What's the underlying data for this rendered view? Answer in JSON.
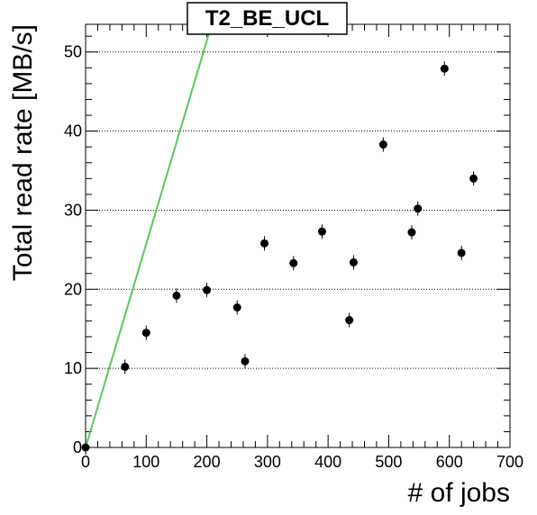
{
  "chart_data": {
    "type": "scatter",
    "title": "T2_BE_UCL",
    "xlabel": "# of jobs",
    "ylabel": "Total read rate [MB/s]",
    "xlim": [
      0,
      700
    ],
    "ylim": [
      0,
      53.5
    ],
    "x_ticks": [
      "0",
      "100",
      "200",
      "300",
      "400",
      "500",
      "600",
      "700"
    ],
    "y_ticks": [
      "0",
      "10",
      "20",
      "30",
      "40",
      "50"
    ],
    "grid": "horizontal dotted at major y ticks",
    "points": [
      {
        "x": 0,
        "y": 0
      },
      {
        "x": 65,
        "y": 10.2
      },
      {
        "x": 100,
        "y": 14.5
      },
      {
        "x": 150,
        "y": 19.2
      },
      {
        "x": 200,
        "y": 19.9
      },
      {
        "x": 250,
        "y": 17.7
      },
      {
        "x": 263,
        "y": 10.9
      },
      {
        "x": 295,
        "y": 25.8
      },
      {
        "x": 343,
        "y": 23.3
      },
      {
        "x": 390,
        "y": 27.3
      },
      {
        "x": 435,
        "y": 16.1
      },
      {
        "x": 442,
        "y": 23.4
      },
      {
        "x": 491,
        "y": 38.3
      },
      {
        "x": 538,
        "y": 27.2
      },
      {
        "x": 548,
        "y": 30.2
      },
      {
        "x": 592,
        "y": 47.9
      },
      {
        "x": 620,
        "y": 24.6
      },
      {
        "x": 640,
        "y": 34.0
      }
    ],
    "fit_line": {
      "color": "#55cc55",
      "x": [
        0,
        208
      ],
      "y": [
        0,
        53.5
      ]
    },
    "marker_color": "#000000"
  }
}
